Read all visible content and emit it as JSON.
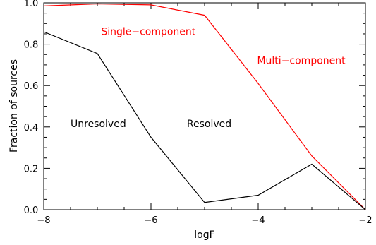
{
  "chart_data": {
    "type": "line",
    "title": "",
    "xlabel": "logF",
    "ylabel": "Fraction of sources",
    "xlim": [
      -8,
      -2
    ],
    "ylim": [
      0,
      1
    ],
    "grid": false,
    "x_ticks": [
      -8,
      -6,
      -4,
      -2
    ],
    "x_tick_labels": [
      "−8",
      "−6",
      "−4",
      "−2"
    ],
    "y_ticks": [
      0,
      0.2,
      0.4,
      0.6,
      0.8,
      1.0
    ],
    "y_tick_labels": [
      "0.0",
      "0.2",
      "0.4",
      "0.6",
      "0.8",
      "1.0"
    ],
    "x": [
      -8,
      -7,
      -6,
      -5,
      -4,
      -3,
      -2
    ],
    "series": [
      {
        "color": "#ff0000",
        "values": [
          0.985,
          0.995,
          0.99,
          0.94,
          0.61,
          0.26,
          0.0
        ]
      },
      {
        "color": "#000000",
        "values": [
          0.86,
          0.755,
          0.35,
          0.035,
          0.07,
          0.22,
          0.0
        ]
      }
    ],
    "annotations": [
      {
        "text": "Single−component",
        "x": -6.93,
        "y": 0.845,
        "color": "#ff0000"
      },
      {
        "text": "Multi−component",
        "x": -4.02,
        "y": 0.705,
        "color": "#ff0000"
      },
      {
        "text": "Unresolved",
        "x": -7.5,
        "y": 0.4,
        "color": "#000000"
      },
      {
        "text": "Resolved",
        "x": -5.33,
        "y": 0.4,
        "color": "#000000"
      }
    ]
  }
}
